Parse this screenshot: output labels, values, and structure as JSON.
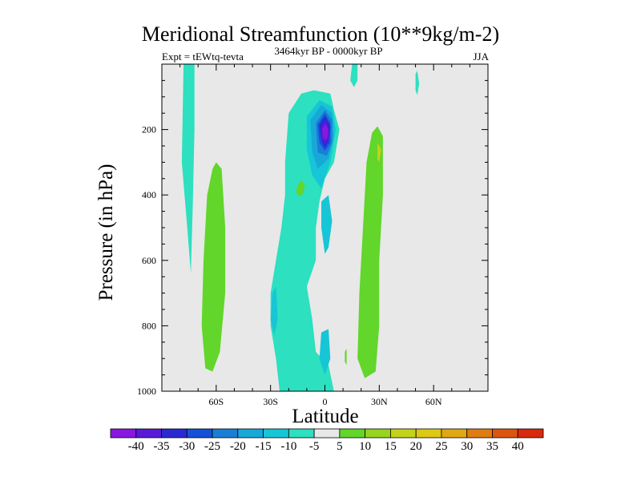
{
  "chart_data": {
    "type": "contour",
    "title": "Meridional Streamfunction (10**9kg/m-2)",
    "subtitle_left": "Expt = tEWtq-tevta",
    "subtitle_center": "3464kyr BP - 0000kyr BP",
    "subtitle_right": "JJA",
    "xlabel": "Latitude",
    "ylabel": "Pressure (in hPa)",
    "xlim": [
      -90,
      90
    ],
    "ylim": [
      1000,
      0
    ],
    "x_ticks": [
      {
        "value": -60,
        "label": "60S"
      },
      {
        "value": -30,
        "label": "30S"
      },
      {
        "value": 0,
        "label": "0"
      },
      {
        "value": 30,
        "label": "30N"
      },
      {
        "value": 60,
        "label": "60N"
      }
    ],
    "y_ticks": [
      {
        "value": 200,
        "label": "200"
      },
      {
        "value": 400,
        "label": "400"
      },
      {
        "value": 600,
        "label": "600"
      },
      {
        "value": 800,
        "label": "800"
      },
      {
        "value": 1000,
        "label": "1000"
      }
    ],
    "colorbar": {
      "levels": [
        "-40",
        "-35",
        "-30",
        "-25",
        "-20",
        "-15",
        "-10",
        "-5",
        "5",
        "10",
        "15",
        "20",
        "25",
        "30",
        "35",
        "40"
      ],
      "colors": [
        "#8a17e0",
        "#5a19d8",
        "#2b28d2",
        "#1450d8",
        "#1a7ed6",
        "#17a8d8",
        "#16c6d6",
        "#2ce0c0",
        "#e8e8e8",
        "#62d62a",
        "#95d51f",
        "#c4d21b",
        "#dcc815",
        "#e0a814",
        "#e07c12",
        "#dc5510",
        "#d82a0e"
      ]
    },
    "contours": [
      {
        "name": "tropical-neg-band",
        "level": "-5",
        "color": "#2ce0c0",
        "points": [
          [
            -20,
            150
          ],
          [
            -13,
            90
          ],
          [
            -6,
            80
          ],
          [
            3,
            90
          ],
          [
            5,
            140
          ],
          [
            8,
            200
          ],
          [
            5,
            300
          ],
          [
            0,
            350
          ],
          [
            -3,
            420
          ],
          [
            -5,
            500
          ],
          [
            -5,
            600
          ],
          [
            -10,
            680
          ],
          [
            -7,
            780
          ],
          [
            -5,
            880
          ],
          [
            2,
            920
          ],
          [
            5,
            1000
          ],
          [
            -25,
            1000
          ],
          [
            -27,
            900
          ],
          [
            -30,
            800
          ],
          [
            -30,
            700
          ],
          [
            -27,
            600
          ],
          [
            -24,
            500
          ],
          [
            -22,
            400
          ],
          [
            -22,
            300
          ]
        ]
      },
      {
        "name": "trop-upper-core",
        "level": "-10",
        "color": "#16c6d6",
        "points": [
          [
            -10,
            160
          ],
          [
            -3,
            110
          ],
          [
            4,
            130
          ],
          [
            6,
            200
          ],
          [
            3,
            300
          ],
          [
            -2,
            380
          ],
          [
            -7,
            340
          ],
          [
            -10,
            260
          ]
        ]
      },
      {
        "name": "trop-core-15",
        "level": "-15",
        "color": "#17a8d8",
        "points": [
          [
            -8,
            170
          ],
          [
            -2,
            125
          ],
          [
            4,
            150
          ],
          [
            5,
            220
          ],
          [
            2,
            290
          ],
          [
            -4,
            320
          ],
          [
            -7,
            270
          ]
        ]
      },
      {
        "name": "trop-core-20",
        "level": "-20",
        "color": "#1a7ed6",
        "points": [
          [
            -5,
            180
          ],
          [
            0,
            140
          ],
          [
            4,
            170
          ],
          [
            4,
            240
          ],
          [
            1,
            280
          ],
          [
            -4,
            270
          ]
        ]
      },
      {
        "name": "trop-core-25",
        "level": "-25",
        "color": "#1450d8",
        "points": [
          [
            -4,
            185
          ],
          [
            0,
            150
          ],
          [
            3,
            180
          ],
          [
            3,
            240
          ],
          [
            0,
            265
          ],
          [
            -3,
            240
          ]
        ]
      },
      {
        "name": "trop-core-30",
        "level": "-30",
        "color": "#2b28d2",
        "points": [
          [
            -3,
            188
          ],
          [
            0,
            160
          ],
          [
            3,
            190
          ],
          [
            2,
            235
          ],
          [
            0,
            255
          ],
          [
            -2,
            230
          ]
        ]
      },
      {
        "name": "trop-core-35",
        "level": "-35",
        "color": "#5a19d8",
        "points": [
          [
            -2,
            192
          ],
          [
            0,
            170
          ],
          [
            2,
            195
          ],
          [
            2,
            230
          ],
          [
            0,
            245
          ],
          [
            -2,
            225
          ]
        ]
      },
      {
        "name": "trop-core-40",
        "level": "-40",
        "color": "#8a17e0",
        "points": [
          [
            -1.5,
            198
          ],
          [
            0.5,
            182
          ],
          [
            2,
            205
          ],
          [
            1,
            230
          ],
          [
            -1,
            228
          ]
        ]
      },
      {
        "name": "trop-lower-neg",
        "level": "-10",
        "color": "#16c6d6",
        "points": [
          [
            -2,
            420
          ],
          [
            2,
            400
          ],
          [
            4,
            480
          ],
          [
            2,
            560
          ],
          [
            0,
            580
          ],
          [
            -2,
            500
          ]
        ]
      },
      {
        "name": "trop-bottom-neg",
        "level": "-10",
        "color": "#16c6d6",
        "points": [
          [
            -2,
            820
          ],
          [
            2,
            810
          ],
          [
            3,
            900
          ],
          [
            0,
            950
          ],
          [
            -3,
            900
          ]
        ]
      },
      {
        "name": "sh-hadley-pos",
        "level": "5",
        "color": "#62d62a",
        "points": [
          [
            -60,
            300
          ],
          [
            -57,
            320
          ],
          [
            -55,
            500
          ],
          [
            -55,
            700
          ],
          [
            -58,
            880
          ],
          [
            -62,
            940
          ],
          [
            -66,
            930
          ],
          [
            -68,
            800
          ],
          [
            -67,
            600
          ],
          [
            -65,
            400
          ],
          [
            -62,
            320
          ]
        ]
      },
      {
        "name": "nh-pos",
        "level": "5",
        "color": "#62d62a",
        "points": [
          [
            29,
            190
          ],
          [
            32,
            220
          ],
          [
            32,
            400
          ],
          [
            30,
            600
          ],
          [
            30,
            800
          ],
          [
            28,
            940
          ],
          [
            22,
            960
          ],
          [
            18,
            900
          ],
          [
            19,
            700
          ],
          [
            21,
            500
          ],
          [
            23,
            300
          ],
          [
            26,
            210
          ]
        ]
      },
      {
        "name": "nh-pos-15",
        "level": "15",
        "color": "#c4d21b",
        "points": [
          [
            29,
            240
          ],
          [
            31,
            260
          ],
          [
            30,
            300
          ],
          [
            29,
            290
          ]
        ]
      },
      {
        "name": "small-pos-20S",
        "level": "5",
        "color": "#62d62a",
        "points": [
          [
            -15,
            370
          ],
          [
            -13,
            355
          ],
          [
            -11,
            370
          ],
          [
            -12,
            395
          ],
          [
            -14,
            405
          ],
          [
            -16,
            390
          ]
        ]
      },
      {
        "name": "small-pos-eq",
        "level": "5",
        "color": "#62d62a",
        "points": [
          [
            11,
            880
          ],
          [
            12,
            870
          ],
          [
            12,
            920
          ],
          [
            11,
            910
          ]
        ]
      },
      {
        "name": "sh-polar-neg",
        "level": "-5",
        "color": "#2ce0c0",
        "points": [
          [
            -78,
            0
          ],
          [
            -72,
            0
          ],
          [
            -72,
            200
          ],
          [
            -73,
            450
          ],
          [
            -74,
            640
          ],
          [
            -76,
            500
          ],
          [
            -79,
            300
          ]
        ]
      },
      {
        "name": "nh-upper-neg-50",
        "level": "-5",
        "color": "#2ce0c0",
        "points": [
          [
            50,
            30
          ],
          [
            51,
            20
          ],
          [
            52,
            60
          ],
          [
            51,
            95
          ],
          [
            50,
            80
          ]
        ]
      },
      {
        "name": "nh-upper-neg-15",
        "level": "-5",
        "color": "#2ce0c0",
        "points": [
          [
            15,
            0
          ],
          [
            18,
            0
          ],
          [
            18,
            50
          ],
          [
            16,
            70
          ],
          [
            14,
            50
          ]
        ]
      },
      {
        "name": "sh-mid-neg",
        "level": "-10",
        "color": "#16c6d6",
        "points": [
          [
            -29,
            700
          ],
          [
            -27,
            680
          ],
          [
            -26,
            780
          ],
          [
            -28,
            830
          ],
          [
            -30,
            780
          ]
        ]
      }
    ]
  }
}
